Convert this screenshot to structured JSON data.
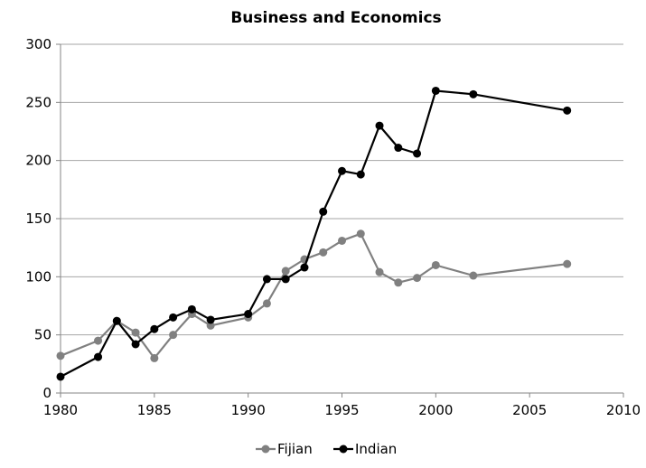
{
  "chart_data": {
    "type": "line",
    "title": "Business and Economics",
    "xlabel": "",
    "ylabel": "",
    "xlim": [
      1980,
      2010
    ],
    "ylim": [
      0,
      300
    ],
    "x_ticks": [
      "1980",
      "1985",
      "1990",
      "1995",
      "2000",
      "2005",
      "2010"
    ],
    "y_ticks": [
      "0",
      "50",
      "100",
      "150",
      "200",
      "250",
      "300"
    ],
    "grid": "horizontal",
    "legend_position": "bottom",
    "series": [
      {
        "name": "Fijian",
        "color": "#808080",
        "points": [
          [
            1980,
            32
          ],
          [
            1982,
            45
          ],
          [
            1983,
            62
          ],
          [
            1984,
            52
          ],
          [
            1985,
            30
          ],
          [
            1986,
            50
          ],
          [
            1987,
            68
          ],
          [
            1988,
            58
          ],
          [
            1990,
            65
          ],
          [
            1991,
            77
          ],
          [
            1992,
            105
          ],
          [
            1993,
            115
          ],
          [
            1994,
            121
          ],
          [
            1995,
            131
          ],
          [
            1996,
            137
          ],
          [
            1997,
            104
          ],
          [
            1998,
            95
          ],
          [
            1999,
            99
          ],
          [
            2000,
            110
          ],
          [
            2002,
            101
          ],
          [
            2007,
            111
          ]
        ]
      },
      {
        "name": "Indian",
        "color": "#000000",
        "points": [
          [
            1980,
            14
          ],
          [
            1982,
            31
          ],
          [
            1983,
            62
          ],
          [
            1984,
            42
          ],
          [
            1985,
            55
          ],
          [
            1986,
            65
          ],
          [
            1987,
            72
          ],
          [
            1988,
            63
          ],
          [
            1990,
            68
          ],
          [
            1991,
            98
          ],
          [
            1992,
            98
          ],
          [
            1993,
            108
          ],
          [
            1994,
            156
          ],
          [
            1995,
            191
          ],
          [
            1996,
            188
          ],
          [
            1997,
            230
          ],
          [
            1998,
            211
          ],
          [
            1999,
            206
          ],
          [
            2000,
            260
          ],
          [
            2002,
            257
          ],
          [
            2007,
            243
          ]
        ]
      }
    ]
  }
}
